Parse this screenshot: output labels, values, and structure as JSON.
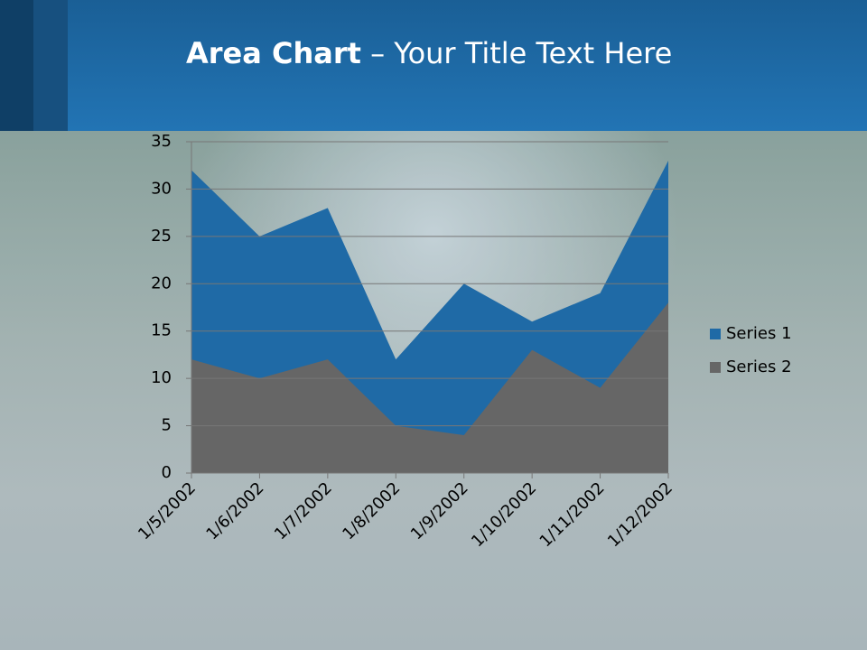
{
  "slide": {
    "title_bold": "Area Chart",
    "title_rest": "– Your Title Text Here"
  },
  "chart_data": {
    "type": "area",
    "categories": [
      "1/5/2002",
      "1/6/2002",
      "1/7/2002",
      "1/8/2002",
      "1/9/2002",
      "1/10/2002",
      "1/11/2002",
      "1/12/2002"
    ],
    "series": [
      {
        "name": "Series 1",
        "color": "#1f6aa6",
        "values": [
          32,
          25,
          28,
          12,
          20,
          16,
          19,
          33
        ]
      },
      {
        "name": "Series 2",
        "color": "#666666",
        "values": [
          12,
          10,
          12,
          5,
          4,
          13,
          9,
          18
        ]
      }
    ],
    "ylim": [
      0,
      35
    ],
    "yticks": [
      0,
      5,
      10,
      15,
      20,
      25,
      30,
      35
    ],
    "grid": true,
    "legend": "right"
  }
}
